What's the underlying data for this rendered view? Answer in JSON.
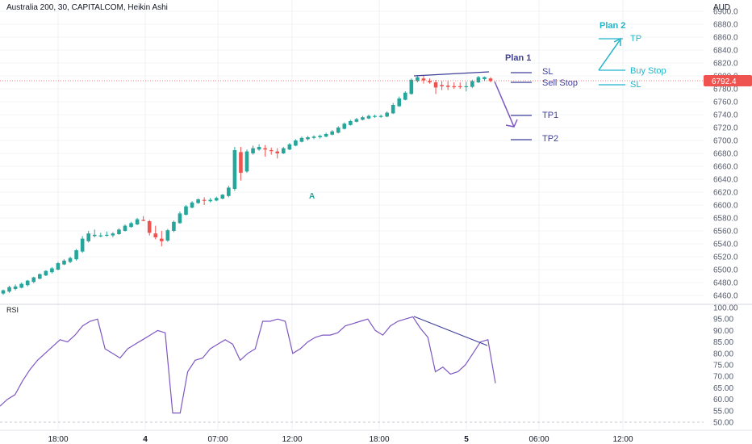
{
  "header": {
    "title": "Australia 200, 30, CAPITALCOM, Heikin Ashi",
    "currency": "AUD"
  },
  "last_price": "6792.4",
  "colors": {
    "up": "#26a69a",
    "down": "#ef5350",
    "rsi": "#7e57c2",
    "plan1": "#3f3f9a",
    "plan2": "#22b5c9",
    "grid": "#e6e9ef",
    "text": "#131722",
    "axis": "#555c6b"
  },
  "plan1": {
    "title": "Plan 1",
    "sl": "SL",
    "entry": "Sell Stop",
    "tp1": "TP1",
    "tp2": "TP2"
  },
  "plan2": {
    "title": "Plan 2",
    "tp": "TP",
    "entry": "Buy Stop",
    "sl": "SL"
  },
  "annotation": "A",
  "rsi_label": "RSI",
  "chart_data": [
    {
      "type": "candlestick",
      "title": "Australia 200, 30, CAPITALCOM, Heikin Ashi",
      "y_unit": "AUD",
      "ylim": [
        6460,
        6900
      ],
      "y_ticks": [
        "6900.0",
        "6880.0",
        "6860.0",
        "6840.0",
        "6820.0",
        "6800.0",
        "6780.0",
        "6760.0",
        "6740.0",
        "6720.0",
        "6700.0",
        "6680.0",
        "6660.0",
        "6640.0",
        "6620.0",
        "6600.0",
        "6580.0",
        "6560.0",
        "6540.0",
        "6520.0",
        "6500.0",
        "6480.0",
        "6460.0"
      ],
      "x_ticks": [
        "18:00",
        "4",
        "07:00",
        "12:00",
        "18:00",
        "5",
        "06:00",
        "12:00"
      ],
      "candles": [
        {
          "o": 6463,
          "h": 6469,
          "l": 6461,
          "c": 6468
        },
        {
          "o": 6466,
          "h": 6475,
          "l": 6464,
          "c": 6473
        },
        {
          "o": 6470,
          "h": 6477,
          "l": 6468,
          "c": 6474
        },
        {
          "o": 6472,
          "h": 6480,
          "l": 6471,
          "c": 6478
        },
        {
          "o": 6476,
          "h": 6484,
          "l": 6474,
          "c": 6483
        },
        {
          "o": 6481,
          "h": 6489,
          "l": 6479,
          "c": 6488
        },
        {
          "o": 6486,
          "h": 6494,
          "l": 6485,
          "c": 6493
        },
        {
          "o": 6491,
          "h": 6499,
          "l": 6490,
          "c": 6498
        },
        {
          "o": 6496,
          "h": 6504,
          "l": 6494,
          "c": 6502
        },
        {
          "o": 6500,
          "h": 6512,
          "l": 6499,
          "c": 6510
        },
        {
          "o": 6508,
          "h": 6516,
          "l": 6507,
          "c": 6514
        },
        {
          "o": 6512,
          "h": 6520,
          "l": 6510,
          "c": 6518
        },
        {
          "o": 6516,
          "h": 6532,
          "l": 6514,
          "c": 6530
        },
        {
          "o": 6528,
          "h": 6552,
          "l": 6526,
          "c": 6548
        },
        {
          "o": 6544,
          "h": 6560,
          "l": 6542,
          "c": 6556
        },
        {
          "o": 6552,
          "h": 6562,
          "l": 6550,
          "c": 6554
        },
        {
          "o": 6553,
          "h": 6557,
          "l": 6550,
          "c": 6553
        },
        {
          "o": 6553,
          "h": 6559,
          "l": 6551,
          "c": 6554
        },
        {
          "o": 6553,
          "h": 6558,
          "l": 6550,
          "c": 6556
        },
        {
          "o": 6555,
          "h": 6564,
          "l": 6554,
          "c": 6562
        },
        {
          "o": 6560,
          "h": 6570,
          "l": 6559,
          "c": 6568
        },
        {
          "o": 6566,
          "h": 6574,
          "l": 6565,
          "c": 6572
        },
        {
          "o": 6570,
          "h": 6580,
          "l": 6569,
          "c": 6578
        },
        {
          "o": 6577,
          "h": 6583,
          "l": 6575,
          "c": 6576
        },
        {
          "o": 6575,
          "h": 6577,
          "l": 6553,
          "c": 6557
        },
        {
          "o": 6556,
          "h": 6568,
          "l": 6547,
          "c": 6550
        },
        {
          "o": 6548,
          "h": 6560,
          "l": 6536,
          "c": 6544
        },
        {
          "o": 6545,
          "h": 6563,
          "l": 6543,
          "c": 6561
        },
        {
          "o": 6560,
          "h": 6576,
          "l": 6558,
          "c": 6574
        },
        {
          "o": 6572,
          "h": 6590,
          "l": 6571,
          "c": 6587
        },
        {
          "o": 6585,
          "h": 6600,
          "l": 6584,
          "c": 6598
        },
        {
          "o": 6596,
          "h": 6606,
          "l": 6595,
          "c": 6604
        },
        {
          "o": 6603,
          "h": 6610,
          "l": 6602,
          "c": 6609
        },
        {
          "o": 6608,
          "h": 6612,
          "l": 6600,
          "c": 6607
        },
        {
          "o": 6606,
          "h": 6611,
          "l": 6604,
          "c": 6608
        },
        {
          "o": 6607,
          "h": 6613,
          "l": 6606,
          "c": 6611
        },
        {
          "o": 6610,
          "h": 6617,
          "l": 6609,
          "c": 6616
        },
        {
          "o": 6614,
          "h": 6630,
          "l": 6612,
          "c": 6627
        },
        {
          "o": 6625,
          "h": 6690,
          "l": 6622,
          "c": 6685
        },
        {
          "o": 6682,
          "h": 6690,
          "l": 6638,
          "c": 6650
        },
        {
          "o": 6652,
          "h": 6686,
          "l": 6650,
          "c": 6683
        },
        {
          "o": 6680,
          "h": 6692,
          "l": 6678,
          "c": 6688
        },
        {
          "o": 6686,
          "h": 6694,
          "l": 6684,
          "c": 6690
        },
        {
          "o": 6688,
          "h": 6693,
          "l": 6675,
          "c": 6686
        },
        {
          "o": 6685,
          "h": 6689,
          "l": 6678,
          "c": 6684
        },
        {
          "o": 6683,
          "h": 6688,
          "l": 6672,
          "c": 6680
        },
        {
          "o": 6680,
          "h": 6690,
          "l": 6679,
          "c": 6688
        },
        {
          "o": 6686,
          "h": 6696,
          "l": 6685,
          "c": 6694
        },
        {
          "o": 6692,
          "h": 6702,
          "l": 6691,
          "c": 6700
        },
        {
          "o": 6698,
          "h": 6706,
          "l": 6697,
          "c": 6704
        },
        {
          "o": 6702,
          "h": 6707,
          "l": 6700,
          "c": 6705
        },
        {
          "o": 6704,
          "h": 6708,
          "l": 6702,
          "c": 6706
        },
        {
          "o": 6705,
          "h": 6709,
          "l": 6703,
          "c": 6707
        },
        {
          "o": 6706,
          "h": 6712,
          "l": 6705,
          "c": 6710
        },
        {
          "o": 6709,
          "h": 6716,
          "l": 6708,
          "c": 6714
        },
        {
          "o": 6712,
          "h": 6722,
          "l": 6711,
          "c": 6720
        },
        {
          "o": 6718,
          "h": 6728,
          "l": 6717,
          "c": 6726
        },
        {
          "o": 6724,
          "h": 6732,
          "l": 6723,
          "c": 6730
        },
        {
          "o": 6729,
          "h": 6735,
          "l": 6728,
          "c": 6733
        },
        {
          "o": 6732,
          "h": 6738,
          "l": 6731,
          "c": 6736
        },
        {
          "o": 6734,
          "h": 6740,
          "l": 6733,
          "c": 6738
        },
        {
          "o": 6737,
          "h": 6740,
          "l": 6735,
          "c": 6738
        },
        {
          "o": 6737,
          "h": 6740,
          "l": 6735,
          "c": 6738
        },
        {
          "o": 6737,
          "h": 6745,
          "l": 6736,
          "c": 6743
        },
        {
          "o": 6742,
          "h": 6758,
          "l": 6741,
          "c": 6755
        },
        {
          "o": 6753,
          "h": 6768,
          "l": 6752,
          "c": 6765
        },
        {
          "o": 6763,
          "h": 6776,
          "l": 6762,
          "c": 6774
        },
        {
          "o": 6772,
          "h": 6796,
          "l": 6771,
          "c": 6794
        },
        {
          "o": 6792,
          "h": 6800,
          "l": 6790,
          "c": 6798
        },
        {
          "o": 6796,
          "h": 6800,
          "l": 6788,
          "c": 6793
        },
        {
          "o": 6792,
          "h": 6796,
          "l": 6788,
          "c": 6790
        },
        {
          "o": 6790,
          "h": 6794,
          "l": 6772,
          "c": 6782
        },
        {
          "o": 6786,
          "h": 6792,
          "l": 6778,
          "c": 6784
        },
        {
          "o": 6785,
          "h": 6792,
          "l": 6778,
          "c": 6783
        },
        {
          "o": 6784,
          "h": 6790,
          "l": 6780,
          "c": 6783
        },
        {
          "o": 6784,
          "h": 6790,
          "l": 6780,
          "c": 6783
        },
        {
          "o": 6783,
          "h": 6791,
          "l": 6776,
          "c": 6784
        },
        {
          "o": 6783,
          "h": 6794,
          "l": 6781,
          "c": 6792
        },
        {
          "o": 6790,
          "h": 6800,
          "l": 6789,
          "c": 6798
        },
        {
          "o": 6795,
          "h": 6799,
          "l": 6792,
          "c": 6798
        },
        {
          "o": 6796,
          "h": 6798,
          "l": 6790,
          "c": 6792
        }
      ]
    },
    {
      "type": "line",
      "title": "RSI",
      "ylim": [
        50,
        100
      ],
      "y_ticks": [
        "100.00",
        "95.00",
        "90.00",
        "85.00",
        "80.00",
        "75.00",
        "70.00",
        "65.00",
        "60.00",
        "55.00",
        "50.00"
      ],
      "series": [
        {
          "values": [
            57,
            60,
            62,
            68,
            73,
            77,
            80,
            83,
            86,
            85,
            88,
            92,
            94,
            95,
            82,
            80,
            78,
            82,
            84,
            86,
            88,
            90,
            89,
            54,
            54,
            72,
            77,
            78,
            82,
            84,
            86,
            84,
            77,
            80,
            82,
            94,
            94,
            95,
            94,
            80,
            82,
            85,
            87,
            88,
            88,
            89,
            92,
            93,
            94,
            95,
            90,
            88,
            92,
            94,
            95,
            96,
            91,
            87,
            72,
            74,
            71,
            72,
            75,
            80,
            85,
            86,
            67
          ]
        }
      ]
    }
  ]
}
